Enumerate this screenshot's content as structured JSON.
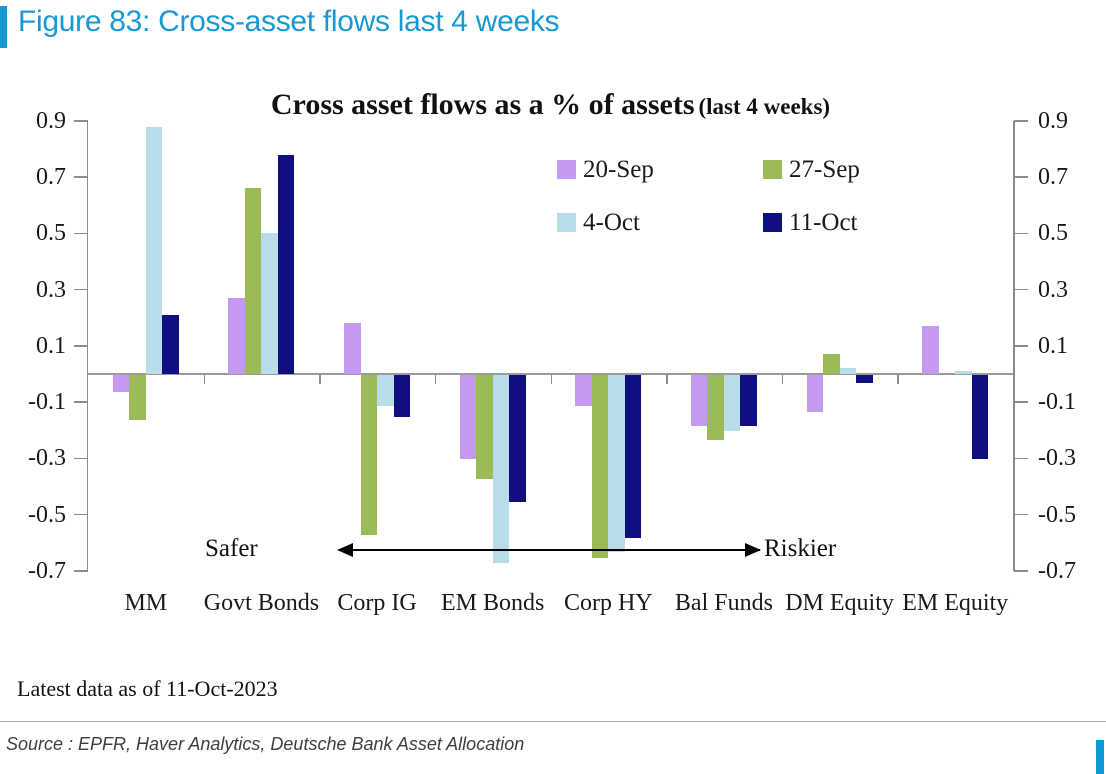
{
  "figure": {
    "heading": "Figure 83: Cross-asset flows last 4 weeks",
    "accent_color": "#1898d4"
  },
  "chart_data": {
    "type": "bar",
    "title_main": "Cross asset flows as a % of assets",
    "title_suffix": "(last 4 weeks)",
    "categories": [
      "MM",
      "Govt Bonds",
      "Corp IG",
      "EM Bonds",
      "Corp HY",
      "Bal Funds",
      "DM Equity",
      "EM Equity"
    ],
    "series": [
      {
        "name": "20-Sep",
        "color": "#c49af0",
        "values": [
          -0.06,
          0.27,
          0.18,
          -0.3,
          -0.11,
          -0.18,
          -0.13,
          0.17
        ]
      },
      {
        "name": "27-Sep",
        "color": "#9bbb59",
        "values": [
          -0.16,
          0.66,
          -0.57,
          -0.37,
          -0.65,
          -0.23,
          0.07,
          0.0
        ]
      },
      {
        "name": "4-Oct",
        "color": "#b8dde9",
        "values": [
          0.88,
          0.5,
          -0.11,
          -0.67,
          -0.63,
          -0.2,
          0.02,
          0.01
        ]
      },
      {
        "name": "11-Oct",
        "color": "#0f0f82",
        "values": [
          0.21,
          0.78,
          -0.15,
          -0.45,
          -0.58,
          -0.18,
          -0.03,
          -0.3
        ]
      }
    ],
    "ylim": [
      -0.7,
      0.9
    ],
    "yticks": [
      0.9,
      0.7,
      0.5,
      0.3,
      0.1,
      -0.1,
      -0.3,
      -0.5,
      -0.7
    ],
    "ytick_labels": [
      "0.9",
      "0.7",
      "0.5",
      "0.3",
      "0.1",
      "-0.1",
      "-0.3",
      "-0.5",
      "-0.7"
    ],
    "grid": false,
    "legend_position": "top-right-two-columns",
    "annotations": {
      "left_label": "Safer",
      "right_label": "Riskier"
    }
  },
  "footer": {
    "note": "Latest data as of 11-Oct-2023",
    "source": "Source : EPFR, Haver Analytics, Deutsche Bank Asset Allocation"
  }
}
